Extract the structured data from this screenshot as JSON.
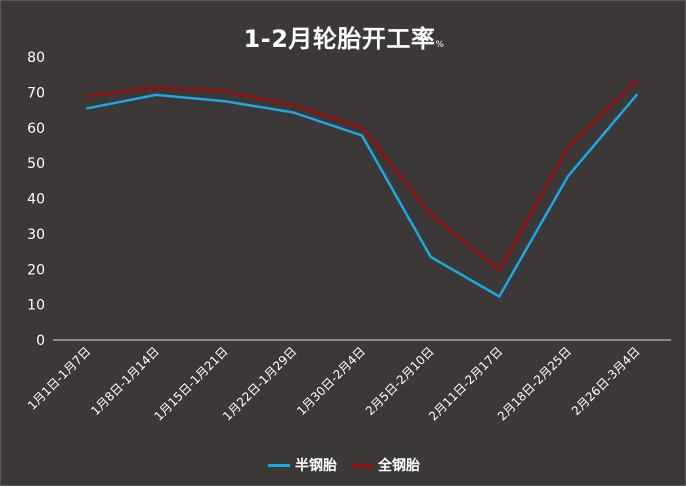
{
  "title": "1-2月轮胎开工率",
  "title_unit": "%",
  "chart_data": {
    "type": "line",
    "title": "1-2月轮胎开工率",
    "title_unit": "%",
    "categories": [
      "1月1日-1月7日",
      "1月8日-1月14日",
      "1月15日-1月21日",
      "1月22日-1月29日",
      "1月30日-2月4日",
      "2月5日-2月10日",
      "2月11日-2月17日",
      "2月18日-2月25日",
      "2月26日-3月4日"
    ],
    "series": [
      {
        "name": "半钢胎",
        "color": "#1ea7e1",
        "values": [
          65.5,
          69.3,
          67.5,
          64.3,
          57.8,
          23.5,
          12.3,
          46.3,
          69.3
        ]
      },
      {
        "name": "全钢胎",
        "color": "#9b0c0c",
        "values": [
          69.0,
          71.3,
          70.3,
          66.5,
          60.0,
          35.5,
          19.8,
          54.5,
          73.5
        ]
      }
    ],
    "ylim": [
      0,
      80
    ],
    "yticks": [
      0,
      10,
      20,
      30,
      40,
      50,
      60,
      70,
      80
    ],
    "grid": false,
    "legend_position": "bottom"
  }
}
